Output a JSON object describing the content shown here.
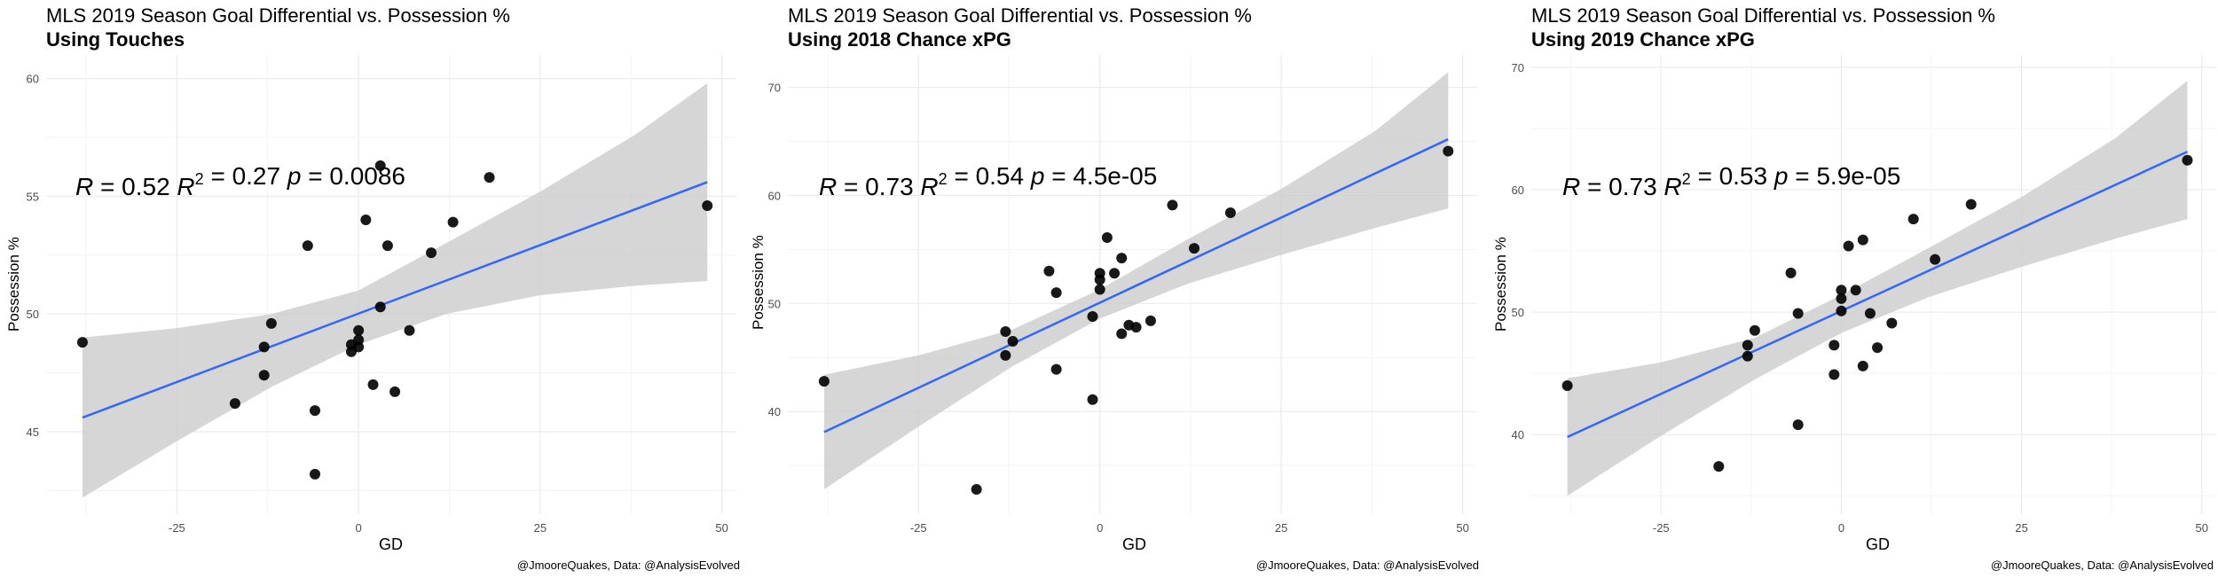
{
  "caption": "@JmooreQuakes, Data: @AnalysisEvolved",
  "colors": {
    "fit_line": "#3366ff",
    "ribbon": "#cccccc",
    "points": "#000000",
    "grid": "#ebebeb"
  },
  "chart_data": [
    {
      "type": "scatter",
      "title": "MLS 2019 Season Goal Differential vs. Possession %",
      "subtitle": "Using Touches",
      "xlabel": "GD",
      "ylabel": "Possession %",
      "stats": {
        "R": "0.52",
        "R2": "0.27",
        "p": "0.0086"
      },
      "xlim": [
        -43,
        52
      ],
      "ylim": [
        41.5,
        61
      ],
      "xticks": [
        -25,
        0,
        25,
        50
      ],
      "yticks": [
        45,
        50,
        55,
        60
      ],
      "grid": true,
      "points": [
        {
          "x": -38,
          "y": 48.8
        },
        {
          "x": -17,
          "y": 46.2
        },
        {
          "x": -13,
          "y": 48.6
        },
        {
          "x": -13,
          "y": 47.4
        },
        {
          "x": -12,
          "y": 49.6
        },
        {
          "x": -7,
          "y": 52.9
        },
        {
          "x": -6,
          "y": 45.9
        },
        {
          "x": -6,
          "y": 43.2
        },
        {
          "x": -1,
          "y": 48.4
        },
        {
          "x": -1,
          "y": 48.7
        },
        {
          "x": 0,
          "y": 48.9
        },
        {
          "x": 0,
          "y": 49.3
        },
        {
          "x": 0,
          "y": 48.6
        },
        {
          "x": 1,
          "y": 54.0
        },
        {
          "x": 2,
          "y": 47.0
        },
        {
          "x": 3,
          "y": 56.3
        },
        {
          "x": 3,
          "y": 50.3
        },
        {
          "x": 4,
          "y": 52.9
        },
        {
          "x": 5,
          "y": 46.7
        },
        {
          "x": 7,
          "y": 49.3
        },
        {
          "x": 10,
          "y": 52.6
        },
        {
          "x": 13,
          "y": 53.9
        },
        {
          "x": 18,
          "y": 55.8
        },
        {
          "x": 48,
          "y": 54.6
        }
      ],
      "fit": {
        "x": [
          -38,
          48
        ],
        "y": [
          45.6,
          55.6
        ]
      },
      "ribbon": {
        "x": [
          -38,
          -25,
          -12,
          0,
          12,
          25,
          38,
          48
        ],
        "lower": [
          42.2,
          44.6,
          46.9,
          48.7,
          50.0,
          50.8,
          51.2,
          51.4
        ],
        "upper": [
          49.0,
          49.4,
          50.0,
          51.0,
          53.0,
          55.2,
          57.6,
          59.8
        ]
      }
    },
    {
      "type": "scatter",
      "title": "MLS 2019 Season Goal Differential vs. Possession %",
      "subtitle": "Using 2018 Chance xPG",
      "xlabel": "GD",
      "ylabel": "Possession %",
      "stats": {
        "R": "0.73",
        "R2": "0.54",
        "p": "4.5e-05"
      },
      "xlim": [
        -43,
        52
      ],
      "ylim": [
        30.5,
        73
      ],
      "xticks": [
        -25,
        0,
        25,
        50
      ],
      "yticks": [
        40,
        50,
        60,
        70
      ],
      "grid": true,
      "points": [
        {
          "x": -38,
          "y": 42.8
        },
        {
          "x": -17,
          "y": 32.8
        },
        {
          "x": -13,
          "y": 47.4
        },
        {
          "x": -13,
          "y": 45.2
        },
        {
          "x": -12,
          "y": 46.5
        },
        {
          "x": -7,
          "y": 53.0
        },
        {
          "x": -6,
          "y": 51.0
        },
        {
          "x": -6,
          "y": 43.9
        },
        {
          "x": -1,
          "y": 48.8
        },
        {
          "x": -1,
          "y": 41.1
        },
        {
          "x": 0,
          "y": 52.8
        },
        {
          "x": 0,
          "y": 52.2
        },
        {
          "x": 0,
          "y": 51.3
        },
        {
          "x": 1,
          "y": 56.1
        },
        {
          "x": 2,
          "y": 52.8
        },
        {
          "x": 3,
          "y": 54.2
        },
        {
          "x": 3,
          "y": 47.2
        },
        {
          "x": 4,
          "y": 48.0
        },
        {
          "x": 5,
          "y": 47.8
        },
        {
          "x": 7,
          "y": 48.4
        },
        {
          "x": 10,
          "y": 59.1
        },
        {
          "x": 13,
          "y": 55.1
        },
        {
          "x": 18,
          "y": 58.4
        },
        {
          "x": 48,
          "y": 64.1
        }
      ],
      "fit": {
        "x": [
          -38,
          48
        ],
        "y": [
          38.1,
          65.2
        ]
      },
      "ribbon": {
        "x": [
          -38,
          -25,
          -12,
          0,
          12,
          25,
          38,
          48
        ],
        "lower": [
          32.8,
          38.6,
          44.2,
          48.6,
          51.8,
          54.5,
          57.0,
          58.8
        ],
        "upper": [
          43.4,
          45.2,
          47.6,
          51.3,
          55.9,
          60.6,
          66.0,
          71.4
        ]
      }
    },
    {
      "type": "scatter",
      "title": "MLS 2019 Season Goal Differential vs. Possession %",
      "subtitle": "Using 2019 Chance xPG",
      "xlabel": "GD",
      "ylabel": "Possession %",
      "stats": {
        "R": "0.73",
        "R2": "0.53",
        "p": "5.9e-05"
      },
      "xlim": [
        -43,
        52
      ],
      "ylim": [
        33.5,
        71
      ],
      "xticks": [
        -25,
        0,
        25,
        50
      ],
      "yticks": [
        40,
        50,
        60,
        70
      ],
      "grid": true,
      "points": [
        {
          "x": -38,
          "y": 44.0
        },
        {
          "x": -17,
          "y": 37.4
        },
        {
          "x": -13,
          "y": 47.3
        },
        {
          "x": -13,
          "y": 46.4
        },
        {
          "x": -12,
          "y": 48.5
        },
        {
          "x": -7,
          "y": 53.2
        },
        {
          "x": -6,
          "y": 49.9
        },
        {
          "x": -6,
          "y": 40.8
        },
        {
          "x": -1,
          "y": 47.3
        },
        {
          "x": -1,
          "y": 44.9
        },
        {
          "x": 0,
          "y": 51.8
        },
        {
          "x": 0,
          "y": 51.1
        },
        {
          "x": 0,
          "y": 50.1
        },
        {
          "x": 1,
          "y": 55.4
        },
        {
          "x": 2,
          "y": 51.8
        },
        {
          "x": 3,
          "y": 55.9
        },
        {
          "x": 3,
          "y": 45.6
        },
        {
          "x": 4,
          "y": 49.9
        },
        {
          "x": 5,
          "y": 47.1
        },
        {
          "x": 7,
          "y": 49.1
        },
        {
          "x": 10,
          "y": 57.6
        },
        {
          "x": 13,
          "y": 54.3
        },
        {
          "x": 18,
          "y": 58.8
        },
        {
          "x": 48,
          "y": 62.4
        }
      ],
      "fit": {
        "x": [
          -38,
          48
        ],
        "y": [
          39.8,
          63.1
        ]
      },
      "ribbon": {
        "x": [
          -38,
          -25,
          -12,
          0,
          12,
          25,
          38,
          48
        ],
        "lower": [
          35.0,
          39.9,
          44.5,
          48.3,
          51.2,
          53.7,
          56.0,
          57.6
        ],
        "upper": [
          44.6,
          45.9,
          47.9,
          51.4,
          55.2,
          59.4,
          64.2,
          68.9
        ]
      }
    }
  ]
}
